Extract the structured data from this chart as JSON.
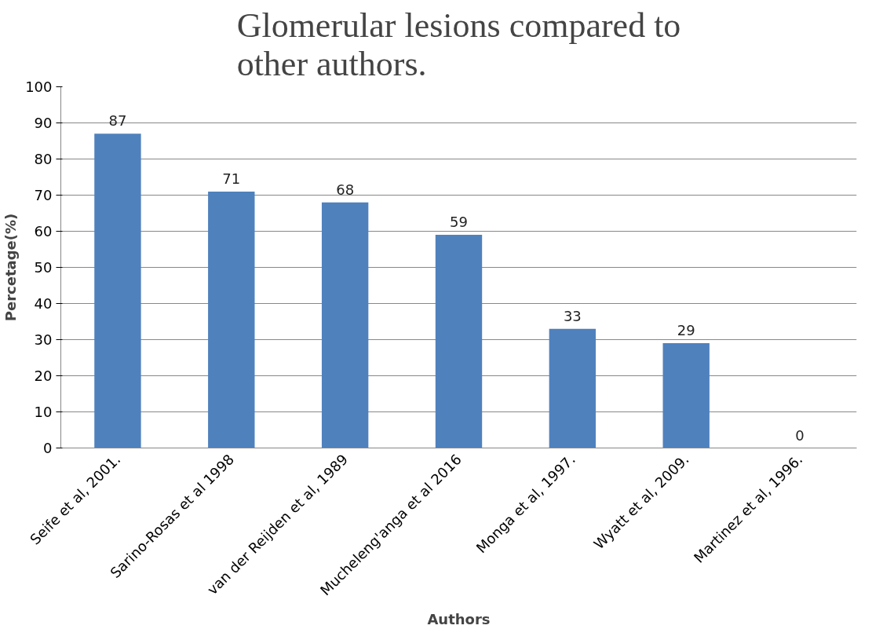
{
  "chart_data": {
    "type": "bar",
    "title": "Glomerular lesions compared to other authors.",
    "xlabel": "Authors",
    "ylabel": "Percetage(%)",
    "categories": [
      "Seife et al, 2001.",
      "Sarino-Rosas et al 1998",
      "van der Reijden et al, 1989",
      "Mucheleng'anga et al 2016",
      "Monga et al, 1997.",
      "Wyatt et al, 2009.",
      "Martinez et al, 1996."
    ],
    "values": [
      87,
      71,
      68,
      59,
      33,
      29,
      0
    ],
    "color": "#4f81bd",
    "ylim": [
      0,
      100
    ],
    "yticks": [
      0,
      10,
      20,
      30,
      40,
      50,
      60,
      70,
      80,
      90,
      100
    ],
    "grid": "y",
    "data_labels": true
  }
}
